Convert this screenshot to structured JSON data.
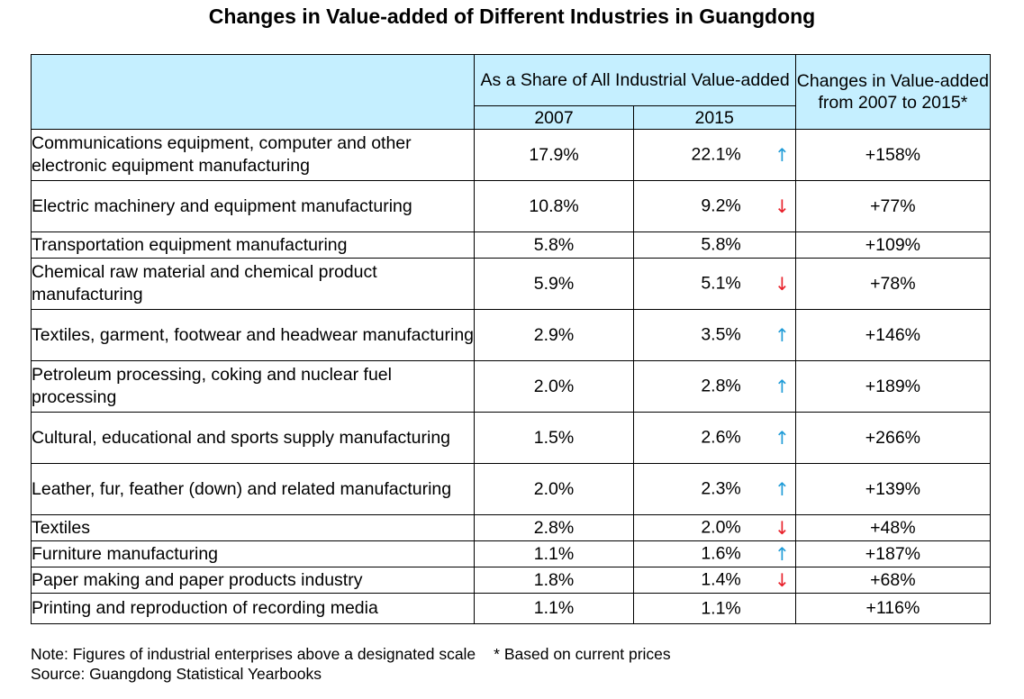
{
  "chart_data": {
    "type": "table",
    "title": "Changes in Value-added of Different Industries in Guangdong",
    "header": {
      "share_group": "As a Share of All Industrial Value-added",
      "col_2007": "2007",
      "col_2015": "2015",
      "change": "Changes in Value-added from 2007 to 2015*"
    },
    "rows": [
      {
        "industry": "Communications equipment, computer and other electronic equipment manufacturing",
        "share_2007": "17.9%",
        "share_2015": "22.1%",
        "trend": "↑",
        "trend_dir": "up",
        "change": "+158%"
      },
      {
        "industry": "Electric machinery and equipment manufacturing",
        "share_2007": "10.8%",
        "share_2015": "9.2%",
        "trend": "↓",
        "trend_dir": "down",
        "change": "+77%"
      },
      {
        "industry": "Transportation equipment manufacturing",
        "share_2007": "5.8%",
        "share_2015": "5.8%",
        "trend": "",
        "trend_dir": "none",
        "change": "+109%"
      },
      {
        "industry": "Chemical raw material and chemical product manufacturing",
        "share_2007": "5.9%",
        "share_2015": "5.1%",
        "trend": "↓",
        "trend_dir": "down",
        "change": "+78%"
      },
      {
        "industry": "Textiles, garment, footwear and headwear manufacturing",
        "share_2007": "2.9%",
        "share_2015": "3.5%",
        "trend": "↑",
        "trend_dir": "up",
        "change": "+146%"
      },
      {
        "industry": "Petroleum processing, coking and nuclear fuel processing",
        "share_2007": "2.0%",
        "share_2015": "2.8%",
        "trend": "↑",
        "trend_dir": "up",
        "change": "+189%"
      },
      {
        "industry": "Cultural, educational and sports supply manufacturing",
        "share_2007": "1.5%",
        "share_2015": "2.6%",
        "trend": "↑",
        "trend_dir": "up",
        "change": "+266%"
      },
      {
        "industry": "Leather, fur, feather (down) and related manufacturing",
        "share_2007": "2.0%",
        "share_2015": "2.3%",
        "trend": "↑",
        "trend_dir": "up",
        "change": "+139%"
      },
      {
        "industry": "Textiles",
        "share_2007": "2.8%",
        "share_2015": "2.0%",
        "trend": "↓",
        "trend_dir": "down",
        "change": "+48%"
      },
      {
        "industry": "Furniture manufacturing",
        "share_2007": "1.1%",
        "share_2015": "1.6%",
        "trend": "↑",
        "trend_dir": "up",
        "change": "+187%"
      },
      {
        "industry": "Paper making and paper products industry",
        "share_2007": "1.8%",
        "share_2015": "1.4%",
        "trend": "↓",
        "trend_dir": "down",
        "change": "+68%"
      },
      {
        "industry": "Printing and reproduction of recording media",
        "share_2007": "1.1%",
        "share_2015": "1.1%",
        "trend": "",
        "trend_dir": "none",
        "change": "+116%"
      }
    ],
    "colors": {
      "header_bg": "#c5efff",
      "up_arrow": "#1f9bd7",
      "down_arrow": "#e8202a"
    }
  },
  "notes": {
    "note": "Note: Figures of industrial enterprises above a designated scale",
    "footnote": "* Based on current prices",
    "source": "Source: Guangdong Statistical Yearbooks"
  }
}
